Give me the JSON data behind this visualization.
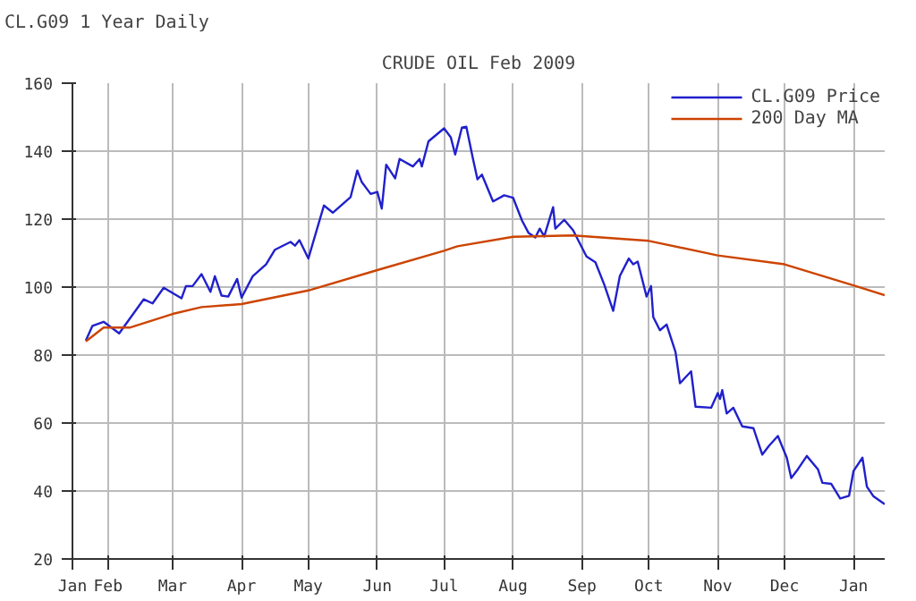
{
  "chart_data": {
    "type": "line",
    "title": "CRUDE OIL Feb 2009",
    "annotations": [
      "CL.G09 1 Year Daily"
    ],
    "xlim": [
      "2008-01-16",
      "2009-01-15"
    ],
    "xticks": [
      {
        "value": "2008-01-16",
        "label": "Jan"
      },
      {
        "value": "2008-02-01",
        "label": "Feb"
      },
      {
        "value": "2008-03-01",
        "label": "Mar"
      },
      {
        "value": "2008-04-01",
        "label": "Apr"
      },
      {
        "value": "2008-05-01",
        "label": "May"
      },
      {
        "value": "2008-06-01",
        "label": "Jun"
      },
      {
        "value": "2008-07-01",
        "label": "Jul"
      },
      {
        "value": "2008-08-01",
        "label": "Aug"
      },
      {
        "value": "2008-09-01",
        "label": "Sep"
      },
      {
        "value": "2008-10-01",
        "label": "Oct"
      },
      {
        "value": "2008-11-01",
        "label": "Nov"
      },
      {
        "value": "2008-12-01",
        "label": "Dec"
      },
      {
        "value": "2009-01-01",
        "label": "Jan"
      }
    ],
    "ylim": [
      20,
      160
    ],
    "yticks": [
      20,
      40,
      60,
      80,
      100,
      120,
      140,
      160
    ],
    "grid": true,
    "legend": "top right",
    "marker": "none",
    "line_style": "solid",
    "series": [
      {
        "name": "CL.G09 Price",
        "color": "#2020cc",
        "x": [
          "2008-01-22",
          "2008-01-25",
          "2008-01-30",
          "2008-02-06",
          "2008-02-17",
          "2008-02-21",
          "2008-02-26",
          "2008-03-05",
          "2008-03-07",
          "2008-03-10",
          "2008-03-14",
          "2008-03-18",
          "2008-03-20",
          "2008-03-23",
          "2008-03-26",
          "2008-03-30",
          "2008-04-01",
          "2008-04-06",
          "2008-04-12",
          "2008-04-16",
          "2008-04-23",
          "2008-04-25",
          "2008-04-27",
          "2008-05-01",
          "2008-05-08",
          "2008-05-12",
          "2008-05-20",
          "2008-05-23",
          "2008-05-25",
          "2008-05-29",
          "2008-06-01",
          "2008-06-03",
          "2008-06-05",
          "2008-06-09",
          "2008-06-11",
          "2008-06-17",
          "2008-06-20",
          "2008-06-21",
          "2008-06-24",
          "2008-07-01",
          "2008-07-04",
          "2008-07-06",
          "2008-07-09",
          "2008-07-11",
          "2008-07-14",
          "2008-07-16",
          "2008-07-18",
          "2008-07-23",
          "2008-07-28",
          "2008-08-01",
          "2008-08-05",
          "2008-08-08",
          "2008-08-11",
          "2008-08-13",
          "2008-08-15",
          "2008-08-19",
          "2008-08-20",
          "2008-08-24",
          "2008-08-28",
          "2008-09-03",
          "2008-09-07",
          "2008-09-11",
          "2008-09-15",
          "2008-09-18",
          "2008-09-22",
          "2008-09-24",
          "2008-09-26",
          "2008-09-30",
          "2008-10-02",
          "2008-10-03",
          "2008-10-06",
          "2008-10-09",
          "2008-10-13",
          "2008-10-15",
          "2008-10-20",
          "2008-10-22",
          "2008-10-29",
          "2008-11-01",
          "2008-11-02",
          "2008-11-03",
          "2008-11-05",
          "2008-11-08",
          "2008-11-12",
          "2008-11-17",
          "2008-11-21",
          "2008-11-24",
          "2008-11-28",
          "2008-12-02",
          "2008-12-04",
          "2008-12-07",
          "2008-12-11",
          "2008-12-16",
          "2008-12-18",
          "2008-12-22",
          "2008-12-26",
          "2008-12-30",
          "2009-01-01",
          "2009-01-05",
          "2009-01-07",
          "2009-01-10",
          "2009-01-15"
        ],
        "values": [
          84.3,
          88.6,
          89.8,
          86.4,
          96.4,
          95.2,
          99.8,
          96.7,
          100.3,
          100.3,
          103.8,
          98.6,
          103.2,
          97.5,
          97.2,
          102.4,
          96.9,
          103.2,
          106.7,
          111.0,
          113.3,
          112.2,
          113.8,
          108.4,
          124.0,
          121.9,
          126.5,
          134.3,
          130.9,
          127.4,
          128.0,
          123.1,
          136.0,
          132.0,
          137.7,
          135.5,
          137.7,
          135.5,
          142.9,
          146.7,
          144.1,
          139.0,
          146.9,
          147.2,
          137.7,
          131.7,
          133.1,
          125.2,
          127.0,
          126.3,
          119.6,
          115.9,
          114.6,
          117.2,
          114.9,
          123.5,
          117.2,
          119.8,
          116.7,
          109.0,
          107.3,
          100.7,
          93.0,
          103.3,
          108.4,
          106.7,
          107.5,
          97.2,
          100.3,
          91.2,
          87.3,
          89.0,
          80.9,
          71.7,
          75.2,
          64.8,
          64.5,
          68.8,
          67.1,
          69.7,
          62.8,
          64.5,
          59.0,
          58.5,
          50.7,
          53.3,
          56.2,
          49.8,
          43.8,
          46.4,
          50.3,
          46.4,
          42.4,
          42.1,
          37.8,
          38.6,
          45.9,
          49.8,
          41.3,
          38.4,
          36.1
        ]
      },
      {
        "name": "200 Day MA",
        "color": "#cc4400",
        "x": [
          "2008-01-22",
          "2008-01-30",
          "2008-02-11",
          "2008-03-01",
          "2008-03-14",
          "2008-04-01",
          "2008-05-01",
          "2008-06-01",
          "2008-07-01",
          "2008-07-07",
          "2008-08-01",
          "2008-08-28",
          "2008-10-01",
          "2008-11-01",
          "2008-12-01",
          "2009-01-02",
          "2009-01-15"
        ],
        "values": [
          84.0,
          88.1,
          88.1,
          92.1,
          94.1,
          95.0,
          99.0,
          105.0,
          110.7,
          112.0,
          114.8,
          115.2,
          113.6,
          109.3,
          106.7,
          100.3,
          97.6
        ]
      }
    ]
  }
}
